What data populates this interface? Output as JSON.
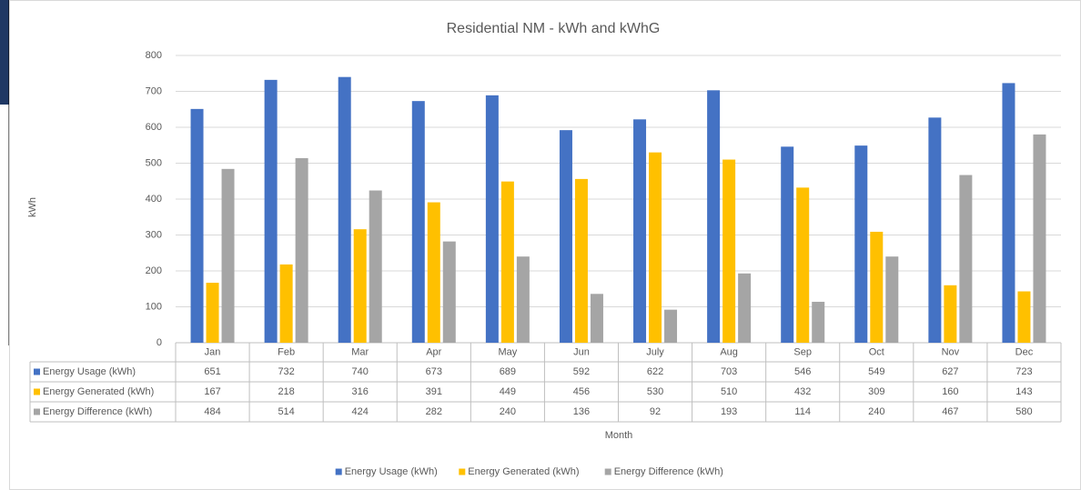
{
  "chart_data": {
    "type": "bar",
    "title": "Residential NM - kWh and kWhG",
    "y_label": "kWh",
    "x_label": "Month",
    "categories": [
      "Jan",
      "Feb",
      "Mar",
      "Apr",
      "May",
      "Jun",
      "July",
      "Aug",
      "Sep",
      "Oct",
      "Nov",
      "Dec"
    ],
    "series": [
      {
        "name": "Energy Usage (kWh)",
        "color": "#4472c4",
        "values": [
          651,
          732,
          740,
          673,
          689,
          592,
          622,
          703,
          546,
          549,
          627,
          723
        ]
      },
      {
        "name": "Energy Generated (kWh)",
        "color": "#ffc000",
        "values": [
          167,
          218,
          316,
          391,
          449,
          456,
          530,
          510,
          432,
          309,
          160,
          143
        ]
      },
      {
        "name": "Energy Difference (kWh)",
        "color": "#a5a5a5",
        "values": [
          484,
          514,
          424,
          282,
          240,
          136,
          92,
          193,
          114,
          240,
          467,
          580
        ]
      }
    ],
    "ylim": [
      0,
      800
    ],
    "yticks": [
      0,
      100,
      200,
      300,
      400,
      500,
      600,
      700,
      800
    ],
    "grid": true,
    "legend": "bottom"
  }
}
